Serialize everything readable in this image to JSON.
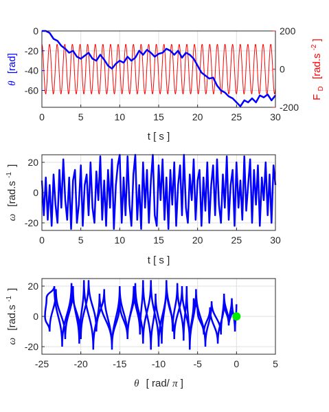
{
  "chart_data": [
    {
      "type": "line",
      "panel": "top",
      "x_ticks": [
        "0",
        "5",
        "10",
        "15",
        "20",
        "25",
        "30"
      ],
      "xlim": [
        0,
        30
      ],
      "left_axis": {
        "ylim": [
          -77,
          0
        ],
        "ticks": [
          "0",
          "-20",
          "-40",
          "-60"
        ],
        "label_symbol": "θ",
        "label_unit": "[rad]",
        "color": "#0000ff"
      },
      "right_axis": {
        "ylim": [
          -200,
          200
        ],
        "ticks": [
          "200",
          "0",
          "-200"
        ],
        "label_main": "F",
        "label_sub": "D",
        "label_unit_pre": "[rad.s",
        "label_unit_sup": "-2",
        "label_unit_post": "]",
        "color": "#ff0000"
      },
      "xlabel": "t  [ s ]",
      "series": [
        {
          "axis": "left",
          "color": "#0000ff",
          "x": [
            0,
            0.5,
            1,
            1.5,
            2,
            2.5,
            3,
            3.5,
            4,
            4.5,
            5,
            5.5,
            6,
            6.5,
            7,
            7.5,
            8,
            8.5,
            9,
            9.5,
            10,
            10.5,
            11,
            11.5,
            12,
            12.5,
            13,
            13.5,
            14,
            14.5,
            15,
            15.5,
            16,
            16.5,
            17,
            17.5,
            18,
            18.5,
            19,
            19.5,
            20,
            20.5,
            21,
            21.5,
            22,
            22.5,
            23,
            23.5,
            24,
            24.5,
            25,
            25.5,
            26,
            26.5,
            27,
            27.5,
            28,
            28.5,
            29,
            29.5,
            30
          ],
          "y": [
            0,
            0,
            -2,
            -8,
            -10,
            -15,
            -18,
            -22,
            -20,
            -26,
            -28,
            -25,
            -22,
            -28,
            -30,
            -24,
            -29,
            -35,
            -38,
            -33,
            -30,
            -32,
            -26,
            -30,
            -27,
            -20,
            -24,
            -19,
            -22,
            -26,
            -23,
            -22,
            -18,
            -20,
            -24,
            -20,
            -27,
            -22,
            -24,
            -28,
            -35,
            -42,
            -45,
            -48,
            -47,
            -55,
            -60,
            -62,
            -66,
            -68,
            -72,
            -76,
            -70,
            -72,
            -68,
            -72,
            -65,
            -67,
            -64,
            -70,
            -65
          ]
        },
        {
          "axis": "right",
          "color": "#ff0000",
          "kind": "sinusoid",
          "amplitude": 130,
          "period": 0.98
        }
      ]
    },
    {
      "type": "line",
      "panel": "middle",
      "x_ticks": [
        "0",
        "5",
        "10",
        "15",
        "20",
        "25",
        "30"
      ],
      "xlim": [
        0,
        30
      ],
      "ylim": [
        -25,
        25
      ],
      "y_ticks": [
        "20",
        "0",
        "-20"
      ],
      "xlabel": "t  [ s ]",
      "ylabel_symbol": "ω",
      "ylabel_pre": "[rad.s",
      "ylabel_sup": "-1",
      "ylabel_post": "]",
      "series": [
        {
          "color": "#0000ff",
          "x": [
            0,
            0.25,
            0.5,
            0.75,
            1,
            1.25,
            1.5,
            1.75,
            2,
            2.25,
            2.5,
            2.75,
            3,
            3.25,
            3.5,
            3.75,
            4,
            4.25,
            4.5,
            4.75,
            5,
            5.25,
            5.5,
            5.75,
            6,
            6.25,
            6.5,
            6.75,
            7,
            7.25,
            7.5,
            7.75,
            8,
            8.25,
            8.5,
            8.75,
            9,
            9.25,
            9.5,
            9.75,
            10,
            10.25,
            10.5,
            10.75,
            11,
            11.25,
            11.5,
            11.75,
            12,
            12.25,
            12.5,
            12.75,
            13,
            13.25,
            13.5,
            13.75,
            14,
            14.25,
            14.5,
            14.75,
            15,
            15.25,
            15.5,
            15.75,
            16,
            16.25,
            16.5,
            16.75,
            17,
            17.25,
            17.5,
            17.75,
            18,
            18.25,
            18.5,
            18.75,
            19,
            19.25,
            19.5,
            19.75,
            20,
            20.25,
            20.5,
            20.75,
            21,
            21.25,
            21.5,
            21.75,
            22,
            22.25,
            22.5,
            22.75,
            23,
            23.25,
            23.5,
            23.75,
            24,
            24.25,
            24.5,
            24.75,
            25,
            25.25,
            25.5,
            25.75,
            26,
            26.25,
            26.5,
            26.75,
            27,
            27.25,
            27.5,
            27.75,
            28,
            28.25,
            28.5,
            28.75,
            29,
            29.25,
            29.5,
            29.75,
            30
          ],
          "y": [
            8,
            -15,
            10,
            -18,
            5,
            -22,
            12,
            -8,
            -20,
            15,
            -10,
            22,
            -5,
            -18,
            10,
            -24,
            8,
            15,
            -20,
            -8,
            18,
            -22,
            5,
            12,
            -15,
            20,
            -10,
            -20,
            14,
            -5,
            24,
            -18,
            8,
            -22,
            15,
            -10,
            22,
            -24,
            5,
            18,
            25,
            -20,
            10,
            -15,
            24,
            -8,
            -22,
            12,
            25,
            -18,
            5,
            -24,
            20,
            -10,
            15,
            -20,
            8,
            25,
            -15,
            -22,
            18,
            -5,
            22,
            -18,
            10,
            -24,
            15,
            -8,
            20,
            -22,
            5,
            18,
            -15,
            25,
            -10,
            -20,
            12,
            -5,
            22,
            -18,
            8,
            15,
            -22,
            10,
            -12,
            20,
            -20,
            5,
            18,
            -15,
            22,
            -8,
            -20,
            12,
            -10,
            24,
            -18,
            5,
            15,
            -22,
            20,
            -10,
            8,
            -18,
            24,
            -12,
            5,
            22,
            -20,
            15,
            -8,
            18,
            -22,
            10,
            -5,
            20,
            -15,
            12,
            -20,
            18,
            5
          ]
        }
      ]
    },
    {
      "type": "line",
      "panel": "bottom",
      "x_ticks": [
        "-25",
        "-20",
        "-15",
        "-10",
        "-5",
        "0",
        "5"
      ],
      "xlim": [
        -25,
        5
      ],
      "ylim": [
        -25,
        25
      ],
      "y_ticks": [
        "20",
        "0",
        "-20"
      ],
      "xlabel_symbol": "θ",
      "xlabel_pre": "[ rad/",
      "xlabel_pi": "π",
      "xlabel_post": " ]",
      "ylabel_symbol": "ω",
      "ylabel_pre": "[rad.s",
      "ylabel_sup": "-1",
      "ylabel_post": "]",
      "marker": {
        "x": 0,
        "y": 0,
        "color": "#00ee00"
      },
      "series": [
        {
          "color": "#0000ff",
          "x": [
            0,
            -0.2,
            -0.6,
            -1.0,
            -1.6,
            -2.0,
            -3.2,
            -4.0,
            -5.2,
            -6.0,
            -6.4,
            -6.8,
            -7.6,
            -8.2,
            -9.0,
            -9.6,
            -10.4,
            -11.0,
            -12.0,
            -12.4,
            -13.2,
            -14.0,
            -15.0,
            -16.0,
            -17.6,
            -18.4,
            -19.6,
            -20.2,
            -21.0,
            -22.0,
            -23.2,
            -24.0,
            -24.6,
            -24.4,
            -23.4,
            -22.4,
            -21.2,
            -20.0,
            -19.0,
            -18.0,
            -17.0,
            -16.0,
            -15.0,
            -14.0,
            -13.0,
            -12.0,
            -11.0,
            -10.0,
            -9.0,
            -8.0,
            -7.0,
            -6.0,
            -5.5,
            -5.0,
            -4.2,
            -3.4,
            -2.4,
            -1.6,
            -1.0,
            -0.6,
            -0.2
          ],
          "y": [
            8,
            -10,
            12,
            -6,
            15,
            -12,
            10,
            -20,
            18,
            -22,
            20,
            -16,
            22,
            -10,
            24,
            -18,
            15,
            -22,
            24,
            -12,
            20,
            -15,
            10,
            -20,
            15,
            -22,
            24,
            -18,
            20,
            -15,
            18,
            -10,
            0,
            12,
            20,
            -20,
            22,
            -15,
            24,
            -10,
            18,
            -22,
            20,
            -15,
            22,
            -18,
            24,
            -20,
            22,
            -15,
            20,
            -18,
            12,
            4,
            -12,
            6,
            -18,
            10,
            -6,
            4,
            0
          ]
        }
      ]
    }
  ]
}
